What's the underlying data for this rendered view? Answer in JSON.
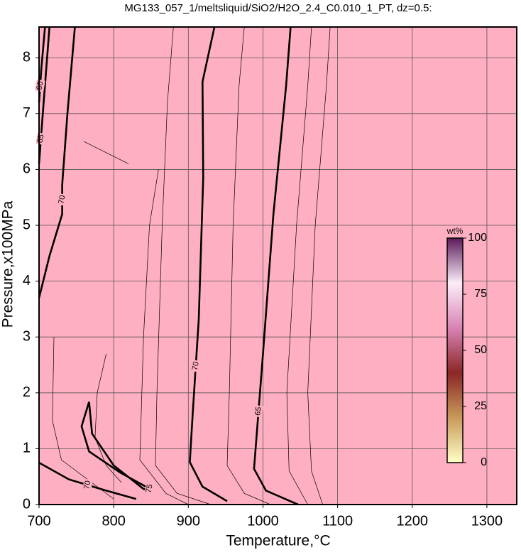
{
  "chart_data": {
    "type": "contour",
    "title": "MG133_057_1/meltsliquid/SiO2/H2O_2.4_C0.010_1_PT, dz=0.5:",
    "x_label": "Temperature,°C",
    "y_label": "Pressure,x100MPa",
    "xlim": [
      700,
      1340
    ],
    "ylim": [
      0,
      8.55
    ],
    "xticks": [
      700,
      800,
      900,
      1000,
      1100,
      1200,
      1300
    ],
    "yticks": [
      0,
      1,
      2,
      3,
      4,
      5,
      6,
      7,
      8
    ],
    "grid": true,
    "background": "#ffafc2",
    "contours": [
      {
        "level": 70,
        "x": [
          935,
          919,
          920,
          914,
          906,
          902,
          919,
          952
        ],
        "y": [
          8.55,
          7.57,
          5.85,
          3.31,
          1.65,
          0.76,
          0.32,
          0.06
        ]
      },
      {
        "level": 65,
        "x": [
          1037,
          1031,
          1014,
          1000,
          988,
          1004,
          1047
        ],
        "y": [
          8.55,
          7.5,
          5.2,
          2.7,
          0.64,
          0.25,
          0
        ]
      },
      {
        "level": 70,
        "x": [
          748,
          738,
          731,
          731,
          714,
          700
        ],
        "y": [
          8.55,
          7.0,
          5.72,
          5.2,
          4.45,
          3.7
        ]
      },
      {
        "level": 75,
        "x": [
          767,
          757,
          767,
          809,
          843,
          853,
          840,
          800,
          771,
          767
        ],
        "y": [
          1.84,
          1.4,
          0.95,
          0.57,
          0.32,
          0.25,
          0.28,
          0.7,
          1.27,
          1.84
        ]
      },
      {
        "level": 65,
        "x": [
          714,
          705,
          700
        ],
        "y": [
          8.55,
          7.0,
          6.1
        ]
      },
      {
        "level": 60,
        "x": [
          708,
          703,
          700
        ],
        "y": [
          8.55,
          7.8,
          7.2
        ]
      },
      {
        "level": 70,
        "x": [
          700,
          740,
          790,
          830
        ],
        "y": [
          0.75,
          0.45,
          0.25,
          0.1
        ]
      }
    ],
    "thin_contours": [
      {
        "x": [
          1090,
          1085,
          1070,
          1060,
          1065,
          1080
        ],
        "y": [
          8.55,
          7.5,
          5.0,
          2.0,
          0.6,
          0
        ]
      },
      {
        "x": [
          1065,
          1060,
          1045,
          1032,
          1035,
          1060
        ],
        "y": [
          8.55,
          7.5,
          5.0,
          2.0,
          0.6,
          0
        ]
      },
      {
        "x": [
          975,
          968,
          960,
          955,
          952,
          975,
          1010
        ],
        "y": [
          8.55,
          7.5,
          5.0,
          2.0,
          0.7,
          0.2,
          0
        ]
      },
      {
        "x": [
          880,
          872,
          865,
          858,
          856,
          885,
          930
        ],
        "y": [
          8.55,
          7.2,
          5.0,
          2.0,
          0.7,
          0.2,
          0
        ]
      },
      {
        "x": [
          860,
          848,
          840,
          835,
          870,
          900
        ],
        "y": [
          6.0,
          5.0,
          3.0,
          0.8,
          0.2,
          0
        ]
      },
      {
        "x": [
          760,
          790,
          820
        ],
        "y": [
          6.5,
          6.3,
          6.1
        ]
      },
      {
        "x": [
          790,
          778,
          775,
          790,
          810
        ],
        "y": [
          2.7,
          2.0,
          1.2,
          0.7,
          0.4
        ]
      },
      {
        "x": [
          720,
          718,
          730,
          770,
          800
        ],
        "y": [
          3.0,
          1.5,
          0.8,
          0.4,
          0.1
        ]
      }
    ],
    "colorbar": {
      "label": "wt%",
      "lim": [
        0,
        100
      ],
      "ticks": [
        0,
        25,
        50,
        75,
        100
      ],
      "colors": [
        "#ffffc8",
        "#c89a5a",
        "#8b2626",
        "#d884b4",
        "#fbeef8",
        "#5a1a5a"
      ]
    }
  }
}
